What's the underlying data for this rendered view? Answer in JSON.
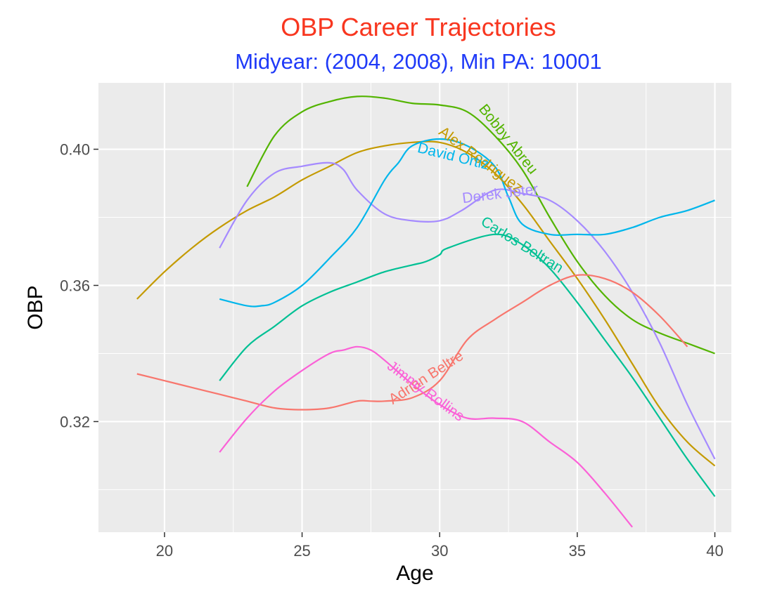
{
  "chart_data": {
    "type": "line",
    "title": "OBP Career Trajectories",
    "subtitle": "Midyear: (2004, 2008), Min PA: 10001",
    "xlabel": "Age",
    "ylabel": "OBP",
    "xlim": [
      17.6,
      40.6
    ],
    "ylim": [
      0.2875,
      0.4195
    ],
    "x_ticks": [
      20,
      25,
      30,
      35,
      40
    ],
    "y_ticks": [
      0.32,
      0.36,
      0.4
    ],
    "y_tick_labels": [
      "0.32",
      "0.36",
      "0.40"
    ],
    "grid": true,
    "legend": "none (labels placed directly on lines)",
    "series": [
      {
        "name": "Bobby Abreu",
        "color": "#53B400",
        "x": [
          23,
          24,
          25,
          26,
          27,
          28,
          29,
          30,
          31,
          32,
          33,
          34,
          35,
          36,
          37,
          38,
          39,
          40
        ],
        "y": [
          0.389,
          0.404,
          0.411,
          0.414,
          0.4155,
          0.415,
          0.4135,
          0.413,
          0.411,
          0.404,
          0.394,
          0.38,
          0.367,
          0.357,
          0.35,
          0.346,
          0.343,
          0.34
        ],
        "label_x": 32.5,
        "label_y": 0.403
      },
      {
        "name": "Alex Rodriguez",
        "color": "#C49A00",
        "x": [
          19,
          20,
          21,
          22,
          23,
          24,
          25,
          26,
          27,
          28,
          29,
          30,
          31,
          32,
          33,
          34,
          35,
          36,
          37,
          38,
          39,
          40
        ],
        "y": [
          0.356,
          0.364,
          0.371,
          0.377,
          0.382,
          0.386,
          0.391,
          0.395,
          0.399,
          0.401,
          0.402,
          0.402,
          0.399,
          0.393,
          0.384,
          0.373,
          0.362,
          0.35,
          0.337,
          0.324,
          0.314,
          0.307
        ],
        "label_x": 31.5,
        "label_y": 0.397
      },
      {
        "name": "Derek Jeter",
        "color": "#A58AFF",
        "x": [
          22,
          23,
          24,
          25,
          26,
          26.5,
          27,
          28,
          29,
          30,
          30.8,
          32,
          33,
          34,
          35,
          36,
          37,
          38,
          39,
          40
        ],
        "y": [
          0.371,
          0.385,
          0.393,
          0.395,
          0.396,
          0.394,
          0.388,
          0.381,
          0.379,
          0.379,
          0.382,
          0.388,
          0.387,
          0.385,
          0.379,
          0.37,
          0.358,
          0.343,
          0.325,
          0.309
        ],
        "label_x": 32.2,
        "label_y": 0.387
      },
      {
        "name": "David Ortiz",
        "color": "#00B6EB",
        "x": [
          22,
          23,
          23.5,
          24,
          25,
          26,
          27,
          28,
          28.5,
          29,
          30,
          31,
          32,
          32.5,
          33,
          34,
          35,
          36,
          37,
          38,
          39,
          40
        ],
        "y": [
          0.356,
          0.354,
          0.354,
          0.355,
          0.36,
          0.368,
          0.377,
          0.391,
          0.396,
          0.401,
          0.403,
          0.401,
          0.395,
          0.386,
          0.378,
          0.375,
          0.375,
          0.375,
          0.377,
          0.38,
          0.382,
          0.385
        ],
        "label_x": 30.5,
        "label_y": 0.398
      },
      {
        "name": "Carlos Beltran",
        "color": "#00C094",
        "x": [
          22,
          23,
          24,
          25,
          26,
          27,
          28,
          29,
          29.5,
          30,
          30.3,
          32,
          33,
          34,
          35,
          36,
          37,
          38,
          39,
          40
        ],
        "y": [
          0.332,
          0.342,
          0.348,
          0.354,
          0.358,
          0.361,
          0.364,
          0.366,
          0.367,
          0.369,
          0.371,
          0.375,
          0.372,
          0.365,
          0.355,
          0.344,
          0.333,
          0.321,
          0.309,
          0.298
        ],
        "label_x": 33,
        "label_y": 0.372
      },
      {
        "name": "Adrian Beltre",
        "color": "#F8766D",
        "x": [
          19,
          20,
          21,
          22,
          23,
          24,
          25,
          26,
          27,
          27.5,
          28,
          29,
          30,
          31,
          32,
          33,
          34,
          35,
          36,
          37,
          38,
          39
        ],
        "y": [
          0.334,
          0.332,
          0.33,
          0.328,
          0.326,
          0.324,
          0.3235,
          0.324,
          0.326,
          0.326,
          0.326,
          0.327,
          0.332,
          0.344,
          0.35,
          0.355,
          0.36,
          0.363,
          0.362,
          0.358,
          0.351,
          0.342
        ],
        "label_x": 29.5,
        "label_y": 0.333
      },
      {
        "name": "Jimmy Rollins",
        "color": "#FB61D7",
        "x": [
          22,
          23,
          24,
          25,
          26,
          26.5,
          27,
          27.5,
          28,
          29,
          30,
          31,
          32,
          33,
          34,
          35,
          36,
          37
        ],
        "y": [
          0.311,
          0.321,
          0.329,
          0.335,
          0.34,
          0.341,
          0.342,
          0.341,
          0.338,
          0.331,
          0.325,
          0.321,
          0.321,
          0.32,
          0.314,
          0.308,
          0.299,
          0.289
        ],
        "label_x": 29.5,
        "label_y": 0.329
      }
    ]
  },
  "colors": {
    "title": "#F8361F",
    "subtitle": "#1F3AF8",
    "panel_bg": "#EBEBEB",
    "grid": "#FFFFFF",
    "axis_text": "#4D4D4D",
    "axis_title": "#000000"
  }
}
